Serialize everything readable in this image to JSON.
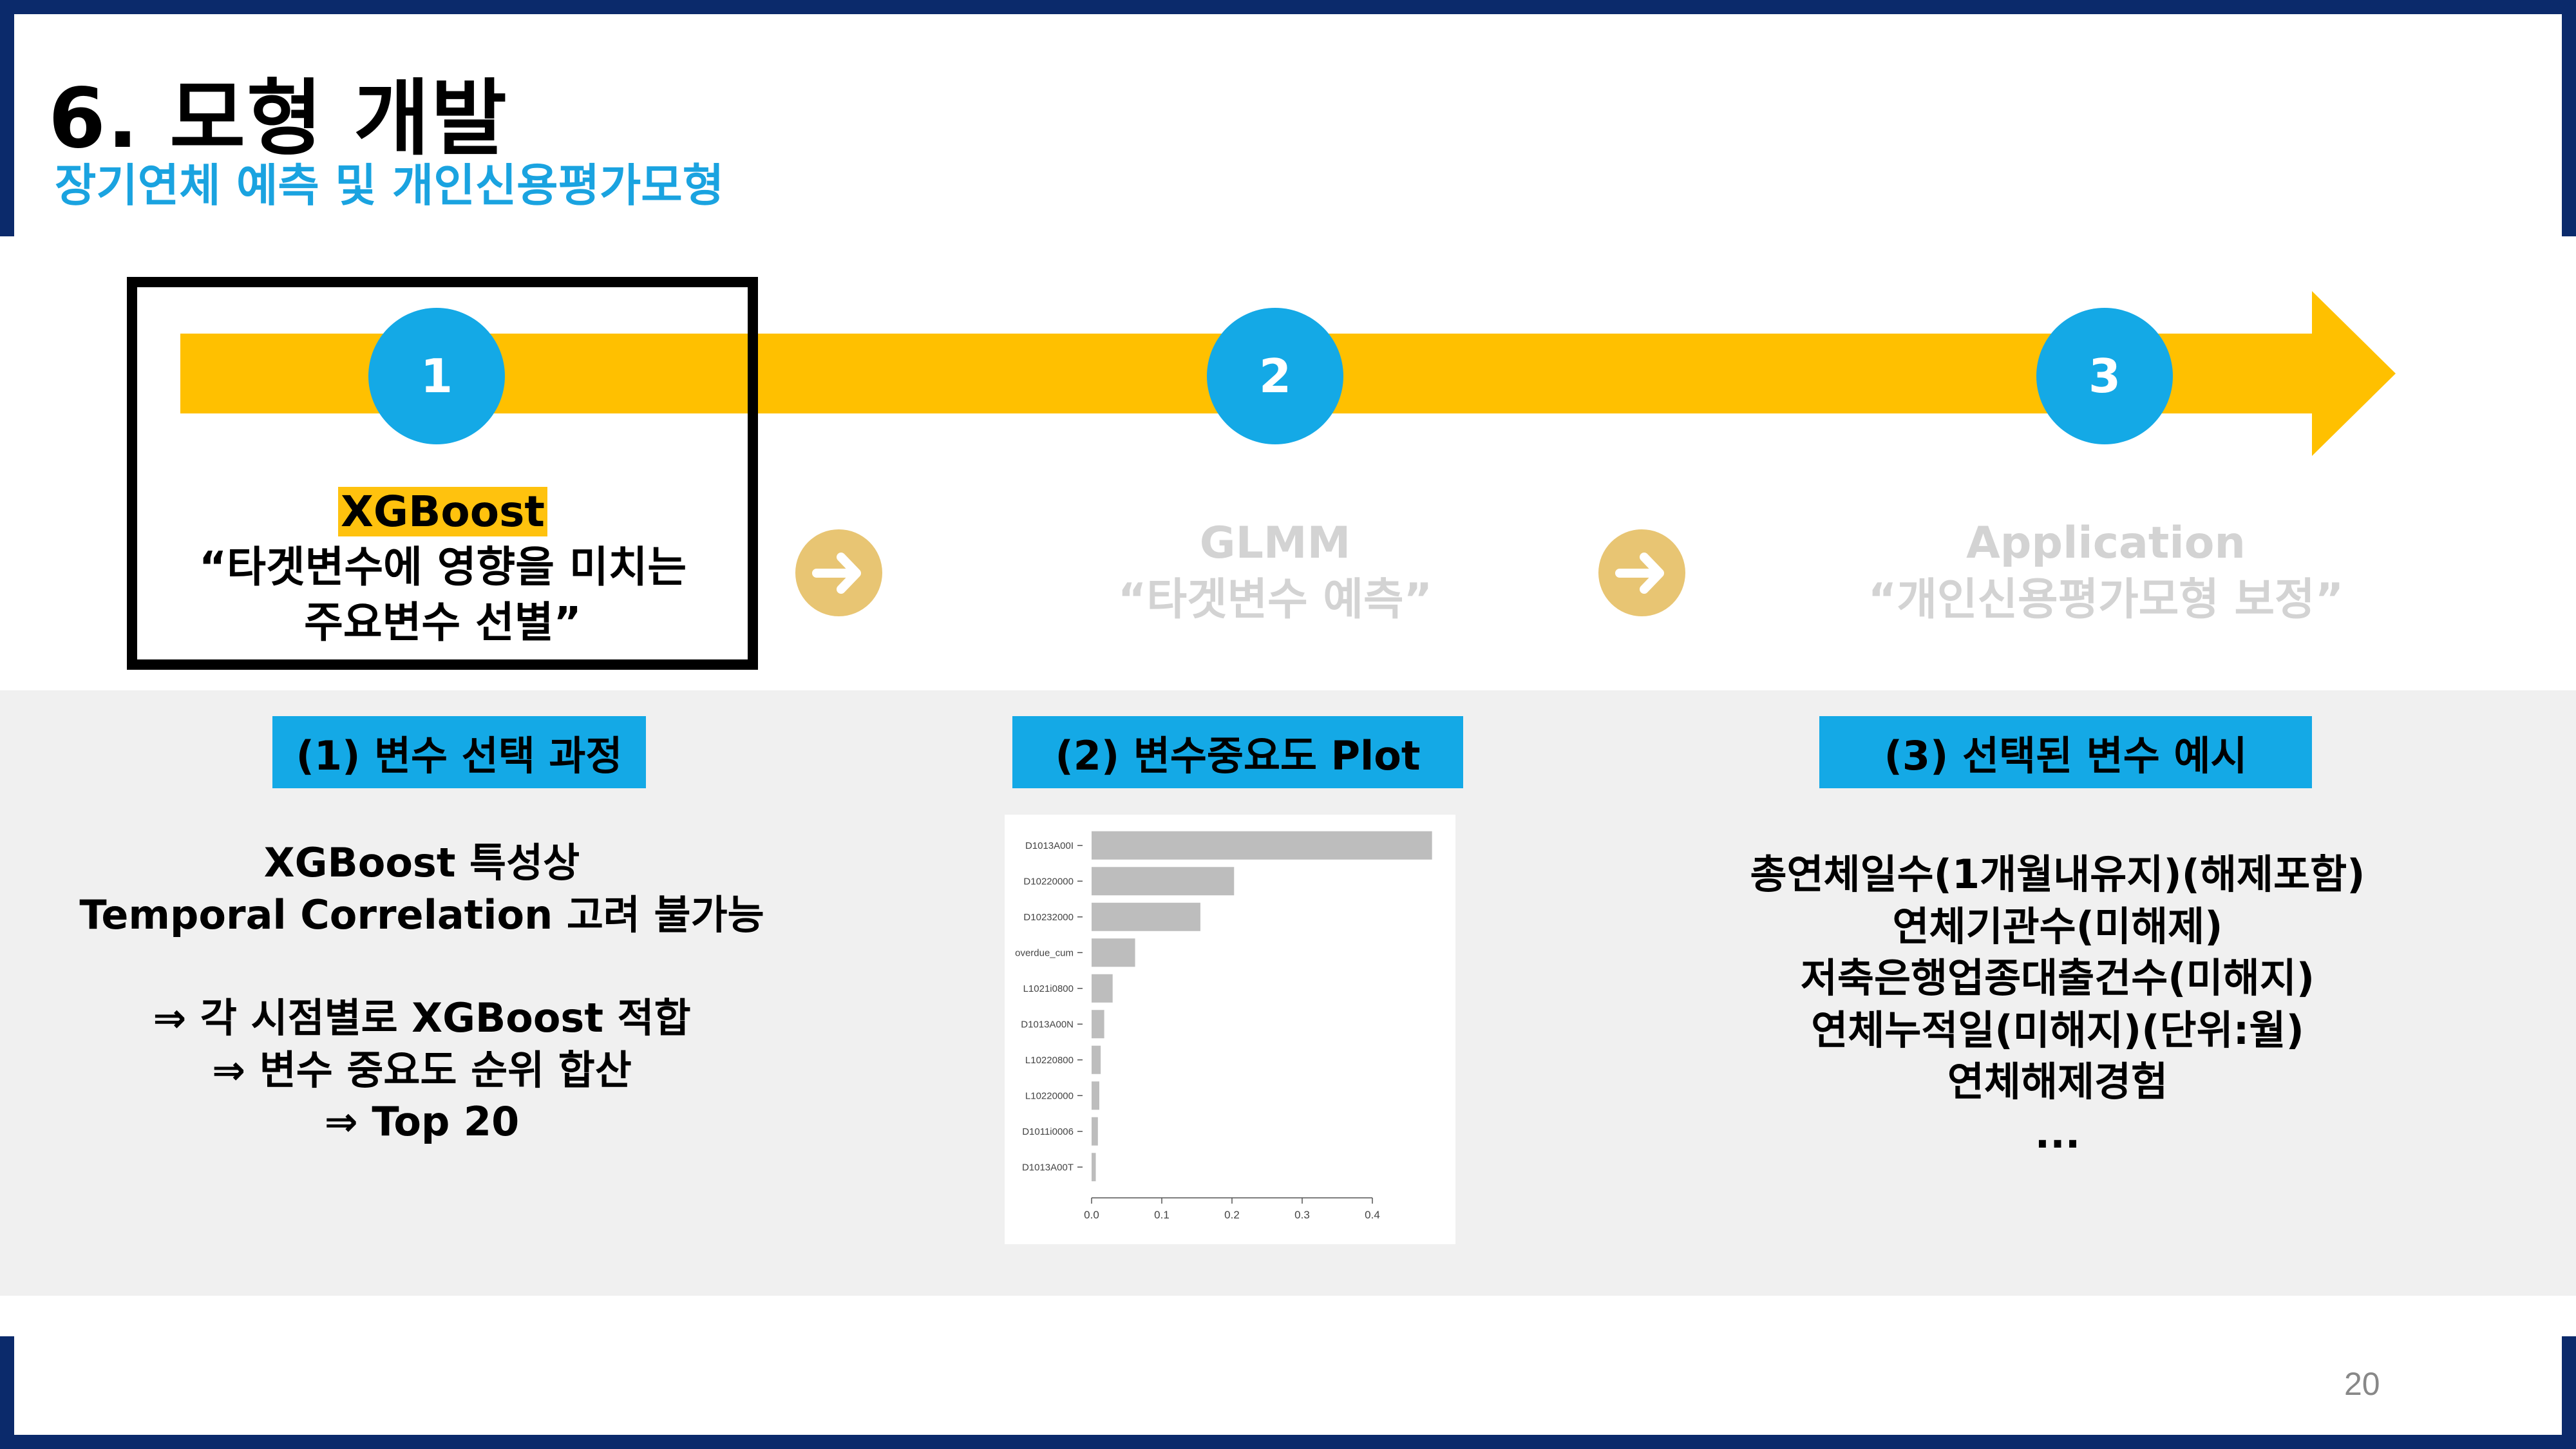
{
  "header": {
    "title": "6. 모형 개발",
    "subtitle": "장기연체 예측 및 개인신용평가모형"
  },
  "steps": [
    {
      "number": "1",
      "title": "XGBoost",
      "line1": "“타겟변수에 영향을 미치는",
      "line2": "주요변수 선별”",
      "active": true
    },
    {
      "number": "2",
      "title": "GLMM",
      "line1": "“타겟변수 예측”",
      "active": false
    },
    {
      "number": "3",
      "title": "Application",
      "line1": "“개인신용평가모형 보정”",
      "active": false
    }
  ],
  "sections": {
    "s1": {
      "label": "(1) 변수 선택 과정",
      "lines": [
        "XGBoost 특성상",
        "Temporal Correlation 고려 불가능",
        "",
        "⇒ 각 시점별로 XGBoost 적합",
        "⇒ 변수 중요도 순위 합산",
        "⇒ Top 20"
      ]
    },
    "s2": {
      "label": "(2) 변수중요도 Plot"
    },
    "s3": {
      "label": "(3) 선택된 변수 예시",
      "lines": [
        "총연체일수(1개월내유지)(해제포함)",
        "연체기관수(미해제)",
        "저축은행업종대출건수(미해지)",
        "연체누적일(미해지)(단위:월)",
        "연체해제경험",
        "..."
      ]
    }
  },
  "chart_data": {
    "type": "bar",
    "orientation": "horizontal",
    "categories": [
      "D1013A00I",
      "D10220000",
      "D10232000",
      "overdue_cum",
      "L1021i0800",
      "D1013A00N",
      "L10220800",
      "L10220000",
      "D1011i0006",
      "D1013A00T"
    ],
    "values": [
      0.485,
      0.203,
      0.155,
      0.062,
      0.03,
      0.018,
      0.013,
      0.011,
      0.009,
      0.006
    ],
    "xticks": [
      "0.0",
      "0.1",
      "0.2",
      "0.3",
      "0.4"
    ],
    "xlim": [
      0,
      0.5
    ],
    "bar_color": "#bdbdbd"
  },
  "page_number": "20",
  "colors": {
    "accent_blue": "#14a9e6",
    "arrow_yellow": "#ffc000",
    "navy": "#0b2a6b",
    "inactive_text": "#d0d0d0"
  }
}
